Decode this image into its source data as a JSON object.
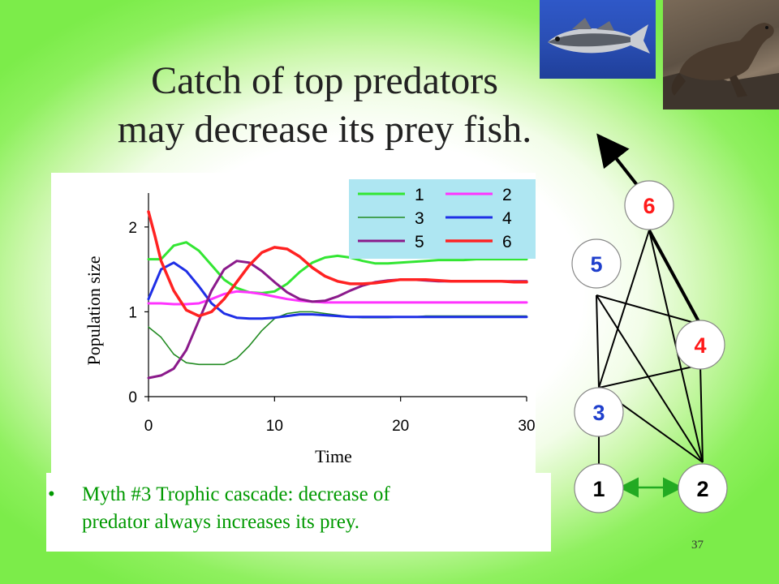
{
  "title": {
    "line1": "Catch of top predators",
    "line2": "may decrease its prey fish."
  },
  "bullet": {
    "marker": "•",
    "line1": "Myth #3 Trophic cascade: decrease of",
    "line2": "predator always increases its prey."
  },
  "page_number": "37",
  "photos": [
    "fish-photo",
    "sea-lion-photo"
  ],
  "chart_data": {
    "type": "line",
    "xlabel": "Time",
    "ylabel": "Population size",
    "xlim": [
      0,
      30
    ],
    "ylim": [
      0,
      2.4
    ],
    "xticks": [
      "0",
      "10",
      "20",
      "30"
    ],
    "yticks": [
      "0",
      "1",
      "2"
    ],
    "grid": false,
    "legend_placement": "top-right",
    "series": [
      {
        "name": "1",
        "color": "#33e633",
        "width": 3,
        "x": [
          0,
          1,
          2,
          3,
          4,
          5,
          6,
          7,
          8,
          9,
          10,
          11,
          12,
          13,
          14,
          15,
          16,
          17,
          18,
          19,
          20,
          21,
          22,
          23,
          24,
          25,
          26,
          27,
          28,
          29,
          30
        ],
        "values": [
          1.62,
          1.62,
          1.78,
          1.82,
          1.72,
          1.55,
          1.38,
          1.28,
          1.23,
          1.22,
          1.24,
          1.33,
          1.47,
          1.58,
          1.64,
          1.66,
          1.64,
          1.6,
          1.57,
          1.57,
          1.58,
          1.59,
          1.6,
          1.61,
          1.61,
          1.61,
          1.62,
          1.62,
          1.62,
          1.62,
          1.62
        ]
      },
      {
        "name": "2",
        "color": "#ff33ff",
        "width": 3,
        "x": [
          0,
          1,
          2,
          3,
          4,
          5,
          6,
          7,
          8,
          9,
          10,
          11,
          12,
          13,
          14,
          15,
          16,
          17,
          18,
          19,
          20,
          21,
          22,
          23,
          24,
          25,
          26,
          27,
          28,
          29,
          30
        ],
        "values": [
          1.1,
          1.1,
          1.09,
          1.09,
          1.1,
          1.15,
          1.21,
          1.24,
          1.23,
          1.21,
          1.18,
          1.15,
          1.13,
          1.12,
          1.11,
          1.11,
          1.11,
          1.11,
          1.11,
          1.11,
          1.11,
          1.11,
          1.11,
          1.11,
          1.11,
          1.11,
          1.11,
          1.11,
          1.11,
          1.11,
          1.11
        ]
      },
      {
        "name": "3",
        "color": "#228b22",
        "width": 1.6,
        "x": [
          0,
          1,
          2,
          3,
          4,
          5,
          6,
          7,
          8,
          9,
          10,
          11,
          12,
          13,
          14,
          15,
          16,
          17,
          18,
          19,
          20,
          21,
          22,
          23,
          24,
          25,
          26,
          27,
          28,
          29,
          30
        ],
        "values": [
          0.82,
          0.7,
          0.5,
          0.4,
          0.38,
          0.38,
          0.38,
          0.45,
          0.6,
          0.78,
          0.92,
          0.98,
          1.0,
          1.0,
          0.98,
          0.96,
          0.94,
          0.93,
          0.93,
          0.93,
          0.94,
          0.94,
          0.95,
          0.95,
          0.95,
          0.95,
          0.95,
          0.95,
          0.95,
          0.95,
          0.95
        ]
      },
      {
        "name": "4",
        "color": "#1f2fe6",
        "width": 3,
        "x": [
          0,
          1,
          2,
          3,
          4,
          5,
          6,
          7,
          8,
          9,
          10,
          11,
          12,
          13,
          14,
          15,
          16,
          17,
          18,
          19,
          20,
          21,
          22,
          23,
          24,
          25,
          26,
          27,
          28,
          29,
          30
        ],
        "values": [
          1.15,
          1.5,
          1.58,
          1.48,
          1.3,
          1.1,
          0.98,
          0.93,
          0.92,
          0.92,
          0.93,
          0.95,
          0.97,
          0.97,
          0.96,
          0.95,
          0.94,
          0.94,
          0.94,
          0.94,
          0.94,
          0.94,
          0.94,
          0.94,
          0.94,
          0.94,
          0.94,
          0.94,
          0.94,
          0.94,
          0.94
        ]
      },
      {
        "name": "5",
        "color": "#8b1a8b",
        "width": 3,
        "x": [
          0,
          1,
          2,
          3,
          4,
          5,
          6,
          7,
          8,
          9,
          10,
          11,
          12,
          13,
          14,
          15,
          16,
          17,
          18,
          19,
          20,
          21,
          22,
          23,
          24,
          25,
          26,
          27,
          28,
          29,
          30
        ],
        "values": [
          0.22,
          0.25,
          0.33,
          0.55,
          0.9,
          1.25,
          1.5,
          1.6,
          1.58,
          1.48,
          1.35,
          1.23,
          1.15,
          1.12,
          1.13,
          1.18,
          1.25,
          1.31,
          1.35,
          1.37,
          1.38,
          1.38,
          1.37,
          1.36,
          1.36,
          1.36,
          1.36,
          1.36,
          1.36,
          1.36,
          1.36
        ]
      },
      {
        "name": "6",
        "color": "#ff2222",
        "width": 3.5,
        "x": [
          0,
          0.5,
          1,
          2,
          3,
          4,
          5,
          6,
          7,
          8,
          9,
          10,
          11,
          12,
          13,
          14,
          15,
          16,
          17,
          18,
          19,
          20,
          21,
          22,
          23,
          24,
          25,
          26,
          27,
          28,
          29,
          30
        ],
        "values": [
          2.18,
          1.9,
          1.6,
          1.25,
          1.02,
          0.95,
          1.0,
          1.15,
          1.35,
          1.55,
          1.7,
          1.76,
          1.74,
          1.65,
          1.52,
          1.42,
          1.36,
          1.33,
          1.33,
          1.34,
          1.36,
          1.38,
          1.38,
          1.38,
          1.37,
          1.36,
          1.36,
          1.36,
          1.36,
          1.36,
          1.35,
          1.35
        ]
      }
    ]
  },
  "food_web": {
    "nodes": [
      {
        "id": "6",
        "color": "#ff1a1a"
      },
      {
        "id": "5",
        "color": "#1f3fcc"
      },
      {
        "id": "4",
        "color": "#ff1a1a"
      },
      {
        "id": "3",
        "color": "#1f3fcc"
      },
      {
        "id": "1",
        "color": "#000000"
      },
      {
        "id": "2",
        "color": "#000000"
      }
    ]
  }
}
